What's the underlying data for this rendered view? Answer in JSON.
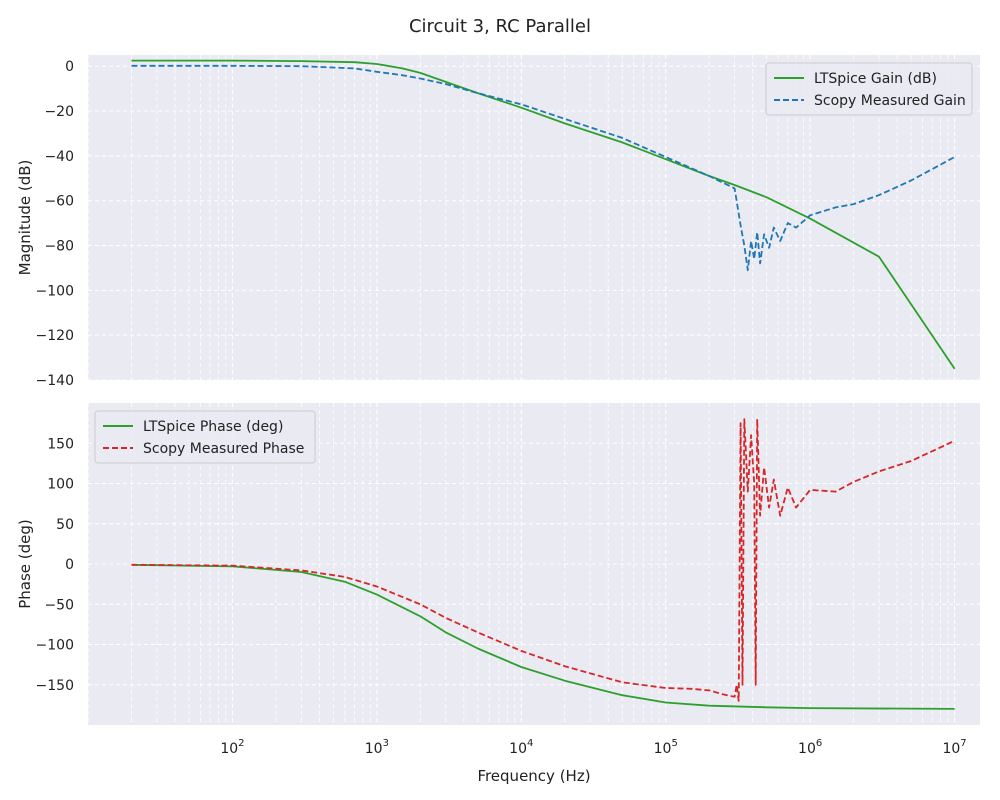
{
  "figure": {
    "title": "Circuit 3, RC Parallel"
  },
  "chart_data": [
    {
      "type": "line",
      "x_scale": "log",
      "xlim": [
        10,
        15000000
      ],
      "ylim": [
        -140,
        5
      ],
      "ylabel": "Magnitude (dB)",
      "xlabel": "",
      "grid": true,
      "legend_position": "top-right",
      "y_ticks": [
        0,
        -20,
        -40,
        -60,
        -80,
        -100,
        -120,
        -140
      ],
      "series": [
        {
          "name": "LTSpice Gain (dB)",
          "color": "#2ca02c",
          "dash": "solid",
          "points": [
            [
              20,
              2.5
            ],
            [
              100,
              2.5
            ],
            [
              300,
              2.3
            ],
            [
              700,
              1.8
            ],
            [
              1000,
              1.0
            ],
            [
              1500,
              -1.0
            ],
            [
              2000,
              -3.0
            ],
            [
              3000,
              -7.0
            ],
            [
              5000,
              -12.0
            ],
            [
              10000,
              -18.5
            ],
            [
              20000,
              -25.5
            ],
            [
              50000,
              -34.0
            ],
            [
              100000,
              -41.5
            ],
            [
              200000,
              -49.0
            ],
            [
              300000,
              -53.0
            ],
            [
              500000,
              -58.5
            ],
            [
              1000000,
              -68.0
            ],
            [
              3000000,
              -85.0
            ],
            [
              10000000,
              -135.0
            ]
          ]
        },
        {
          "name": "Scopy Measured Gain",
          "color": "#1f77b4",
          "dash": "dashed",
          "points": [
            [
              20,
              0.2
            ],
            [
              100,
              0.2
            ],
            [
              300,
              0.0
            ],
            [
              700,
              -1.0
            ],
            [
              1000,
              -2.5
            ],
            [
              1500,
              -4.0
            ],
            [
              2000,
              -5.5
            ],
            [
              3000,
              -8.0
            ],
            [
              5000,
              -12.0
            ],
            [
              10000,
              -17.0
            ],
            [
              20000,
              -23.5
            ],
            [
              50000,
              -32.0
            ],
            [
              100000,
              -40.5
            ],
            [
              200000,
              -49.0
            ],
            [
              300000,
              -54.5
            ],
            [
              330000,
              -71.0
            ],
            [
              350000,
              -80.0
            ],
            [
              370000,
              -91.0
            ],
            [
              390000,
              -78.0
            ],
            [
              410000,
              -86.0
            ],
            [
              430000,
              -74.0
            ],
            [
              450000,
              -88.0
            ],
            [
              480000,
              -75.0
            ],
            [
              520000,
              -81.0
            ],
            [
              560000,
              -72.0
            ],
            [
              620000,
              -78.0
            ],
            [
              700000,
              -70.0
            ],
            [
              800000,
              -72.0
            ],
            [
              1000000,
              -66.5
            ],
            [
              1500000,
              -63.0
            ],
            [
              2000000,
              -61.5
            ],
            [
              3000000,
              -57.5
            ],
            [
              5000000,
              -51.0
            ],
            [
              10000000,
              -40.5
            ]
          ]
        }
      ]
    },
    {
      "type": "line",
      "x_scale": "log",
      "xlim": [
        10,
        15000000
      ],
      "ylim": [
        -200,
        200
      ],
      "ylabel": "Phase (deg)",
      "xlabel": "Frequency (Hz)",
      "grid": true,
      "legend_position": "top-left",
      "y_ticks": [
        150,
        100,
        50,
        0,
        -50,
        -100,
        -150
      ],
      "x_tick_exponents": [
        "2",
        "3",
        "4",
        "5",
        "6",
        "7"
      ],
      "x_tick_base": "10",
      "series": [
        {
          "name": "LTSpice Phase (deg)",
          "color": "#2ca02c",
          "dash": "solid",
          "points": [
            [
              20,
              -1
            ],
            [
              100,
              -3
            ],
            [
              300,
              -10
            ],
            [
              600,
              -22
            ],
            [
              1000,
              -38
            ],
            [
              2000,
              -65
            ],
            [
              3000,
              -85
            ],
            [
              5000,
              -105
            ],
            [
              10000,
              -128
            ],
            [
              20000,
              -145
            ],
            [
              50000,
              -163
            ],
            [
              100000,
              -172
            ],
            [
              200000,
              -176
            ],
            [
              500000,
              -178
            ],
            [
              1000000,
              -179
            ],
            [
              10000000,
              -180
            ]
          ]
        },
        {
          "name": "Scopy Measured Phase",
          "color": "#d62728",
          "dash": "dashed",
          "points": [
            [
              20,
              -1
            ],
            [
              100,
              -2
            ],
            [
              300,
              -8
            ],
            [
              600,
              -16
            ],
            [
              1000,
              -28
            ],
            [
              2000,
              -50
            ],
            [
              3000,
              -67
            ],
            [
              5000,
              -85
            ],
            [
              10000,
              -108
            ],
            [
              20000,
              -127
            ],
            [
              50000,
              -147
            ],
            [
              100000,
              -154
            ],
            [
              150000,
              -155
            ],
            [
              200000,
              -157
            ],
            [
              250000,
              -162
            ],
            [
              300000,
              -165
            ],
            [
              310000,
              -150
            ],
            [
              320000,
              -170
            ],
            [
              330000,
              175
            ],
            [
              340000,
              -150
            ],
            [
              350000,
              180
            ],
            [
              370000,
              90
            ],
            [
              390000,
              160
            ],
            [
              410000,
              100
            ],
            [
              420000,
              -150
            ],
            [
              430000,
              180
            ],
            [
              450000,
              60
            ],
            [
              480000,
              120
            ],
            [
              520000,
              70
            ],
            [
              560000,
              105
            ],
            [
              620000,
              60
            ],
            [
              700000,
              95
            ],
            [
              800000,
              70
            ],
            [
              1000000,
              92
            ],
            [
              1500000,
              90
            ],
            [
              2000000,
              102
            ],
            [
              3000000,
              115
            ],
            [
              5000000,
              128
            ],
            [
              10000000,
              153
            ]
          ]
        }
      ]
    }
  ]
}
